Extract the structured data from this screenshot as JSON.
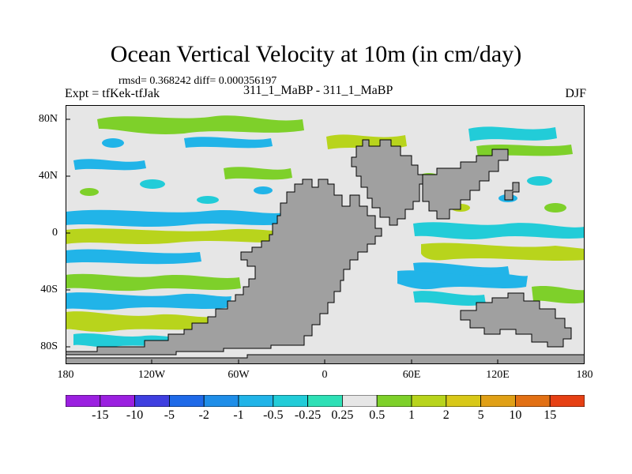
{
  "title": "Ocean Vertical Velocity at 10m (in cm/day)",
  "stats_text": "rmsd= 0.368242 diff= 0.000356197",
  "experiment_label": "Expt = tfKek-tfJak",
  "center_label": "311_1_MaBP - 311_1_MaBP",
  "season_label": "DJF",
  "lat_labels": [
    "80N",
    "40N",
    "0",
    "40S",
    "80S"
  ],
  "lon_labels": [
    "180",
    "120W",
    "60W",
    "0",
    "60E",
    "120E",
    "180"
  ],
  "colorbar": {
    "labels": [
      "-15",
      "-10",
      "-5",
      "-2",
      "-1",
      "-0.5",
      "-0.25",
      "0.25",
      "0.5",
      "1",
      "2",
      "5",
      "10",
      "15"
    ],
    "colors": [
      "#9b20e0",
      "#3f3fe0",
      "#1f6ae8",
      "#1f8ee8",
      "#21b4e8",
      "#22ccd8",
      "#2ee0b6",
      "#e6e6e6",
      "#7ed02a",
      "#b8d41c",
      "#d8c818",
      "#e0a016",
      "#e27014",
      "#e64014"
    ]
  },
  "map": {
    "land_color": "#a0a0a0",
    "background_color": "#e6e6e6",
    "coastline_color": "#000000"
  }
}
